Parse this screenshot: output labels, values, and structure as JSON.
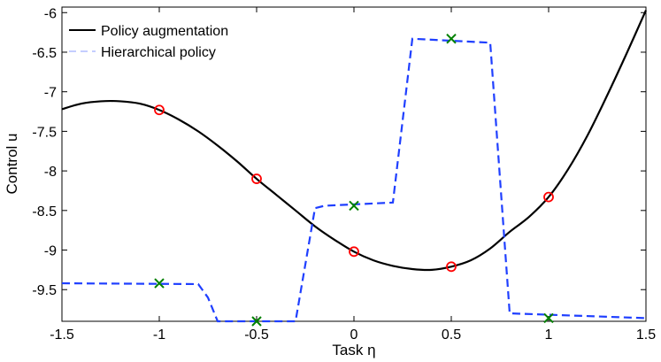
{
  "chart_data": {
    "type": "line",
    "title": "",
    "xlabel": "Task η",
    "ylabel": "Control u",
    "xlim": [
      -1.5,
      1.5
    ],
    "ylim": [
      -9.9,
      -5.93
    ],
    "xticks": [
      "-1.5",
      "-1",
      "-0.5",
      "0",
      "0.5",
      "1",
      "1.5"
    ],
    "xtick_values": [
      -1.5,
      -1,
      -0.5,
      0,
      0.5,
      1,
      1.5
    ],
    "yticks": [
      "-6",
      "-6.5",
      "-7",
      "-7.5",
      "-8",
      "-8.5",
      "-9",
      "-9.5"
    ],
    "ytick_values": [
      -6,
      -6.5,
      -7,
      -7.5,
      -8,
      -8.5,
      -9,
      -9.5
    ],
    "grid": false,
    "legend_position": "top-left",
    "series": [
      {
        "name": "Policy augmentation",
        "color": "#000000",
        "style": "solid",
        "x": [
          -1.5,
          -1.4,
          -1.3,
          -1.2,
          -1.1,
          -1.0,
          -0.9,
          -0.8,
          -0.7,
          -0.6,
          -0.5,
          -0.4,
          -0.3,
          -0.2,
          -0.1,
          0.0,
          0.1,
          0.2,
          0.3,
          0.4,
          0.5,
          0.6,
          0.7,
          0.8,
          0.9,
          1.0,
          1.1,
          1.2,
          1.3,
          1.4,
          1.5
        ],
        "values": [
          -7.22,
          -7.15,
          -7.12,
          -7.12,
          -7.15,
          -7.23,
          -7.35,
          -7.5,
          -7.68,
          -7.88,
          -8.1,
          -8.3,
          -8.5,
          -8.7,
          -8.87,
          -9.02,
          -9.13,
          -9.2,
          -9.24,
          -9.25,
          -9.21,
          -9.13,
          -8.98,
          -8.77,
          -8.58,
          -8.33,
          -7.98,
          -7.55,
          -7.05,
          -6.52,
          -5.97
        ]
      },
      {
        "name": "Hierarchical policy",
        "color": "#1f3fff",
        "style": "dashed",
        "x": [
          -1.5,
          -0.8,
          -0.75,
          -0.7,
          -0.3,
          -0.2,
          -0.15,
          0.2,
          0.3,
          0.7,
          0.8,
          1.5
        ],
        "values": [
          -9.42,
          -9.43,
          -9.6,
          -9.9,
          -9.9,
          -8.47,
          -8.44,
          -8.4,
          -6.33,
          -6.38,
          -9.8,
          -9.86
        ]
      }
    ],
    "markers": [
      {
        "series": "Policy augmentation",
        "symbol": "circle",
        "color": "#ff0000",
        "x": [
          -1,
          -0.5,
          0,
          0.5,
          1
        ],
        "y": [
          -7.23,
          -8.1,
          -9.02,
          -9.21,
          -8.33
        ]
      },
      {
        "series": "Hierarchical policy",
        "symbol": "cross",
        "color": "#008000",
        "x": [
          -1,
          -0.5,
          0,
          0.5,
          1
        ],
        "y": [
          -9.42,
          -9.9,
          -8.44,
          -6.33,
          -9.86
        ]
      }
    ]
  }
}
